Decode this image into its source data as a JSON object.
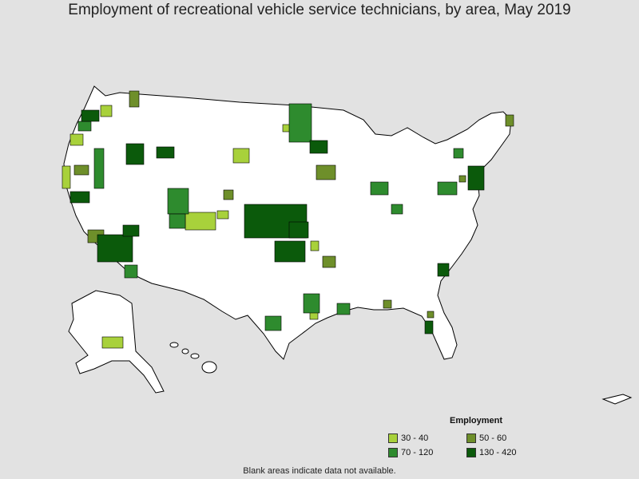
{
  "title": "Employment of recreational vehicle service technicians, by area, May 2019",
  "legend": {
    "title": "Employment",
    "items": [
      {
        "label": "30 - 40",
        "color": "#a8d13b"
      },
      {
        "label": "50 - 60",
        "color": "#6e8f2a"
      },
      {
        "label": "70 - 120",
        "color": "#2e8b2e"
      },
      {
        "label": "130 - 420",
        "color": "#0b5a0b"
      }
    ]
  },
  "footnote": "Blank areas indicate data not available.",
  "colors": {
    "background": "#e2e2e2",
    "land": "#ffffff",
    "border": "#000000"
  }
}
